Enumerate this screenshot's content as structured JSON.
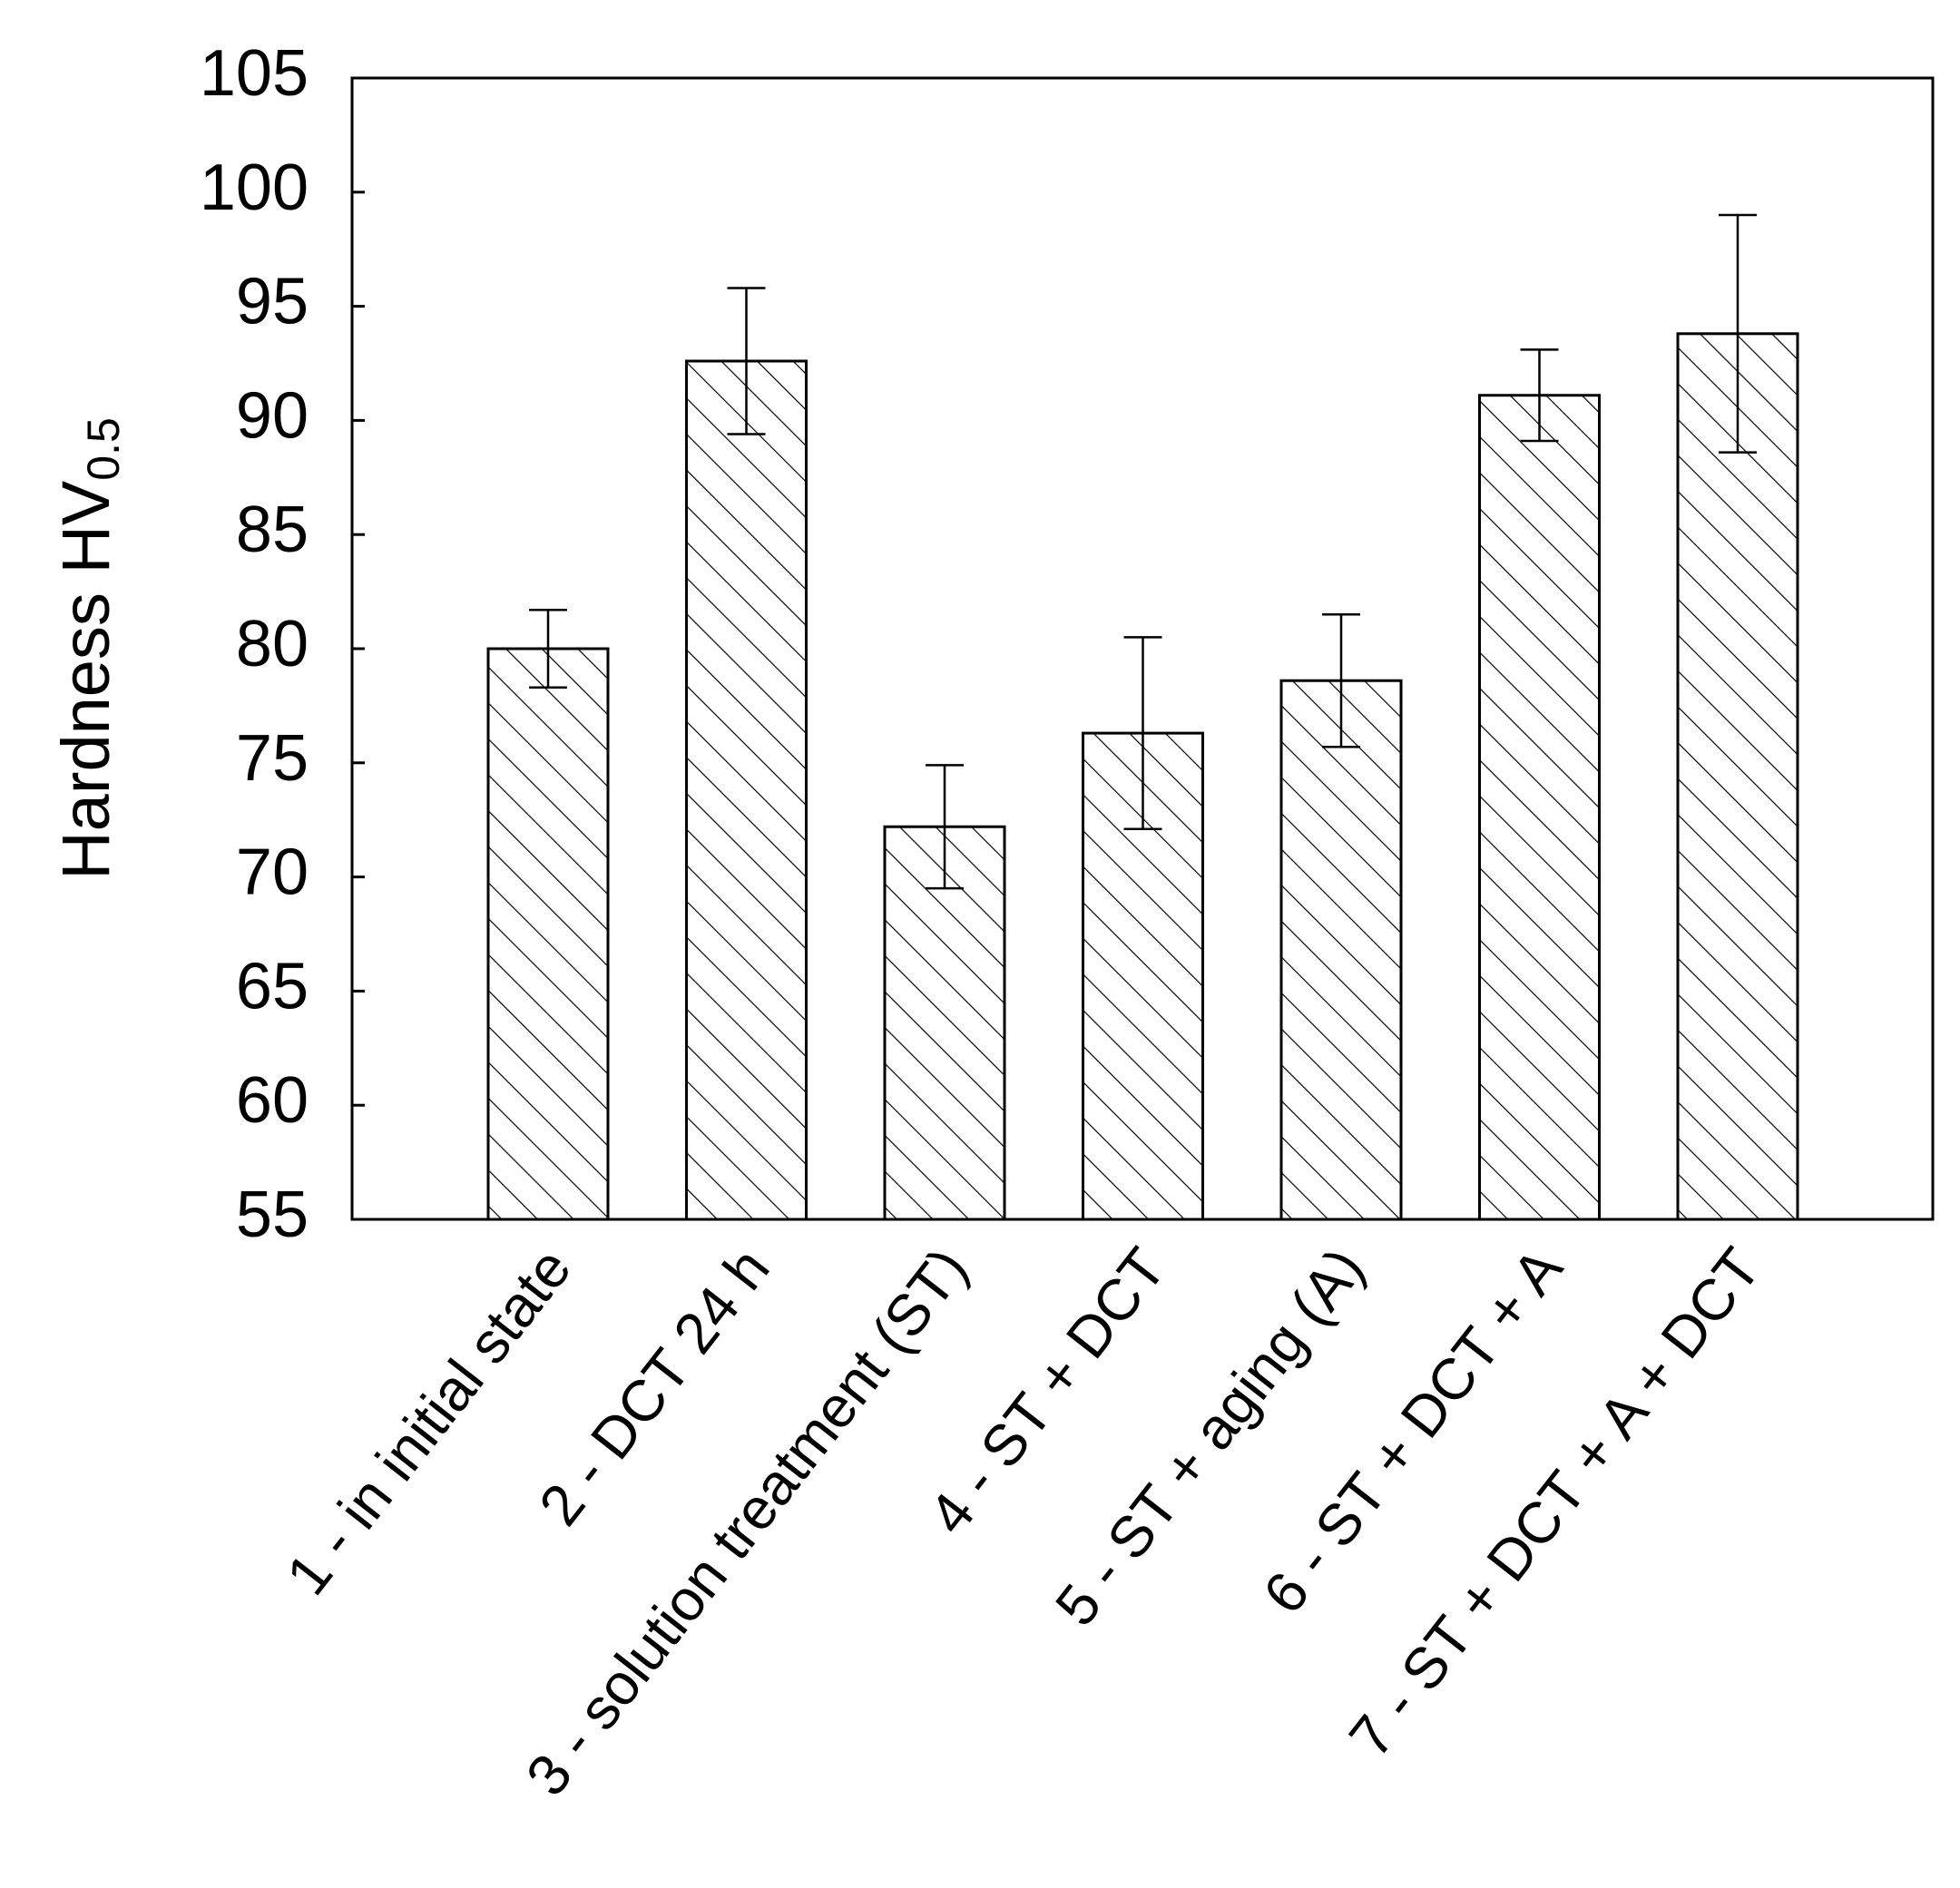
{
  "chart_data": {
    "type": "bar",
    "categories": [
      "1 -  in initial state",
      "2 - DCT 24 h",
      "3 - solution treatment (ST)",
      "4 -  ST + DCT",
      "5 - ST + aging (A)",
      "6 - ST + DCT + A",
      "7 -  ST + DCT + A + DCT"
    ],
    "values": [
      80.0,
      92.6,
      72.2,
      76.3,
      78.6,
      91.1,
      93.8
    ],
    "errors": [
      1.7,
      3.2,
      2.7,
      4.2,
      2.9,
      2.0,
      5.2
    ],
    "ylabel": "Hardness HV",
    "ylabel_subscript": "0.5",
    "xlabel": "",
    "title": "",
    "ylim": [
      55,
      105
    ],
    "yticks": [
      55,
      60,
      65,
      70,
      75,
      80,
      85,
      90,
      95,
      100,
      105
    ],
    "grid": false,
    "legend": "none",
    "bar_fill": "hatched",
    "colors": {
      "bar_stroke": "#000000",
      "hatch": "#000000",
      "background": "#ffffff"
    }
  }
}
